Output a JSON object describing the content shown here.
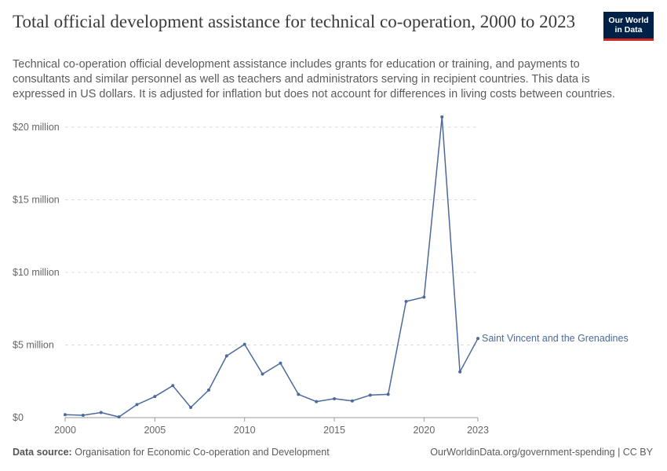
{
  "header": {
    "title": "Total official development assistance for technical co-operation, 2000 to 2023",
    "subtitle": "Technical co-operation official development assistance includes grants for education or training, and payments to consultants and similar personnel as well as teachers and administrators serving in recipient countries. This data is expressed in US dollars. It is adjusted for inflation but does not account for differences in living costs between countries.",
    "logo": "Our World\nin Data"
  },
  "footer": {
    "source_label": "Data source:",
    "source_text": "Organisation for Economic Co-operation and Development",
    "url_text": "OurWorldinData.org/government-spending | CC BY"
  },
  "colors": {
    "series": "#4c6a9c",
    "logo_bg": "#002147",
    "logo_accent": "#ce261e",
    "grid": "#dddddd"
  },
  "chart_data": {
    "type": "line",
    "title": "Total official development assistance for technical co-operation, 2000 to 2023",
    "xlabel": "",
    "ylabel": "",
    "xlim": [
      2000,
      2023
    ],
    "ylim": [
      0,
      20000000
    ],
    "grid": "horizontal-dashed",
    "x_ticks": [
      2000,
      2005,
      2010,
      2015,
      2020,
      2023
    ],
    "x_tick_labels": [
      "2000",
      "2005",
      "2010",
      "2015",
      "2020",
      "2023"
    ],
    "y_ticks": [
      0,
      5000000,
      10000000,
      15000000,
      20000000
    ],
    "y_tick_labels": [
      "$0",
      "$5 million",
      "$10 million",
      "$15 million",
      "$20 million"
    ],
    "series": [
      {
        "name": "Saint Vincent and the Grenadines",
        "x": [
          2000,
          2001,
          2002,
          2003,
          2004,
          2005,
          2006,
          2007,
          2008,
          2009,
          2010,
          2011,
          2012,
          2013,
          2014,
          2015,
          2016,
          2017,
          2018,
          2019,
          2020,
          2021,
          2022,
          2023
        ],
        "values": [
          200000,
          160000,
          350000,
          50000,
          900000,
          1450000,
          2200000,
          700000,
          1900000,
          4250000,
          5050000,
          3000000,
          3750000,
          1600000,
          1100000,
          1300000,
          1150000,
          1550000,
          1600000,
          8000000,
          8300000,
          20700000,
          3150000,
          5450000
        ]
      }
    ]
  }
}
